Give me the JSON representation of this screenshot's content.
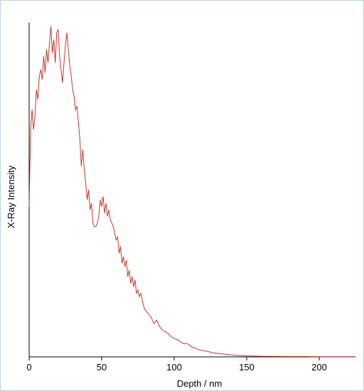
{
  "chart_data": {
    "type": "line",
    "title": "",
    "xlabel": "Depth / nm",
    "ylabel": "X-Ray Intensity",
    "xlim": [
      0,
      225
    ],
    "ylim": [
      0,
      100
    ],
    "x_ticks": [
      "0",
      "50",
      "100",
      "150",
      "200"
    ],
    "y_ticks_labeled": false,
    "grid": false,
    "colors": {
      "series": "#c0392b",
      "axis": "#000000",
      "border": "#b9d3ea"
    },
    "series": [
      {
        "x": [
          0,
          1,
          2,
          3,
          4,
          5,
          6,
          7,
          8,
          9,
          10,
          11,
          12,
          13,
          14,
          15,
          16,
          17,
          18,
          19,
          20,
          21,
          22,
          23,
          24,
          25,
          26,
          27,
          28,
          29,
          30,
          31,
          32,
          33,
          34,
          35,
          36,
          37,
          38,
          39,
          40,
          41,
          42,
          43,
          44,
          45,
          46,
          47,
          48,
          49,
          50,
          51,
          52,
          53,
          54,
          55,
          56,
          57,
          58,
          59,
          60,
          61,
          62,
          63,
          64,
          65,
          66,
          67,
          68,
          69,
          70,
          71,
          72,
          73,
          74,
          75,
          76,
          77,
          78,
          79,
          80,
          82,
          84,
          86,
          88,
          90,
          92,
          94,
          96,
          98,
          100,
          103,
          106,
          109,
          112,
          115,
          118,
          121,
          124,
          127,
          130,
          135,
          140,
          145,
          150,
          160,
          170,
          180,
          190,
          200,
          210,
          225
        ],
        "values": [
          45,
          68,
          74,
          68,
          72,
          80,
          77,
          84,
          86,
          83,
          90,
          85,
          92,
          88,
          94,
          99,
          91,
          95,
          88,
          97,
          98,
          90,
          86,
          82,
          88,
          93,
          97,
          92,
          87,
          84,
          80,
          78,
          74,
          75,
          70,
          65,
          57,
          62,
          56,
          52,
          47,
          50,
          44,
          46,
          40,
          39,
          39,
          40,
          42,
          47,
          45,
          48,
          43,
          46,
          42,
          44,
          41,
          40,
          39,
          37,
          35,
          36,
          31,
          33,
          28,
          30,
          27,
          29,
          24,
          26,
          22,
          24,
          21,
          23,
          19,
          20,
          18,
          19,
          17,
          15,
          14,
          13,
          12,
          10,
          11,
          9,
          8,
          7.5,
          7,
          6,
          5.5,
          5,
          4,
          4,
          3,
          2.5,
          2,
          1.8,
          1.5,
          1.2,
          1.0,
          0.8,
          0.6,
          0.4,
          0.3,
          0.2,
          0.15,
          0.1,
          0.1,
          0.05,
          0.05,
          0.05
        ]
      }
    ]
  }
}
